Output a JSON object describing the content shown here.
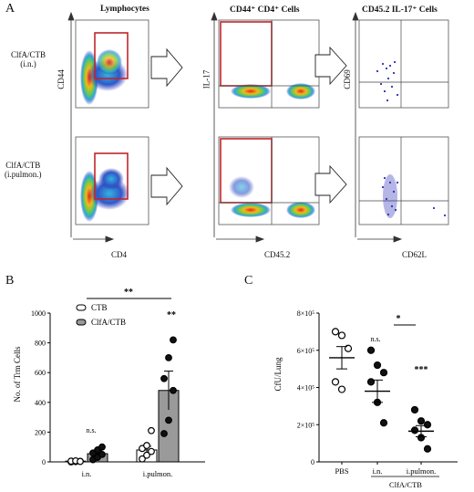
{
  "panel_a": {
    "label": "A",
    "headers": {
      "lymphocytes": "Lymphocytes",
      "cd44cd4": "CD44⁺ CD4⁺ Cells",
      "cd45il17": "CD45.2  IL-17⁺ Cells"
    },
    "row_labels": [
      {
        "name": "ClfA/CTB",
        "route": "(i.n.)"
      },
      {
        "name": "ClfA/CTB",
        "route": "(i.pulmon.)"
      }
    ],
    "axes": {
      "y1": "CD44",
      "x1": "CD4",
      "y2": "IL-17",
      "x2": "CD45.2",
      "y3": "CD69",
      "x3": "CD62L"
    },
    "colors": {
      "gate": "#c0262c",
      "dot_low": "#2b2fb5",
      "dot_high": "#e21b1b"
    }
  },
  "panel_b": {
    "label": "B",
    "legend": [
      "CTB",
      "ClfA/CTB"
    ],
    "sig_top": "**",
    "sig_bar": "**",
    "ns": "n.s."
  },
  "panel_c": {
    "label": "C",
    "sig_pair": "*",
    "sig_bar": "***",
    "ns": "n.s.",
    "group_label": "ClfA/CTB"
  },
  "chart_data": [
    {
      "type": "bar",
      "ylabel": "No. of Trm Cells",
      "ylim": [
        0,
        1000
      ],
      "yticks": [
        0,
        200,
        400,
        600,
        800,
        1000
      ],
      "categories": [
        "i.n.",
        "i.pulmon."
      ],
      "series": [
        {
          "name": "CTB",
          "color": "#ffffff",
          "values": [
            5,
            80
          ],
          "sem": [
            3,
            25
          ],
          "points": [
            [
              0,
              2,
              4,
              5,
              7,
              3
            ],
            [
              20,
              45,
              70,
              90,
              110,
              210
            ]
          ]
        },
        {
          "name": "ClfA/CTB",
          "color": "#9a9a9a",
          "values": [
            55,
            480
          ],
          "sem": [
            20,
            130
          ],
          "points": [
            [
              15,
              30,
              50,
              60,
              80,
              100
            ],
            [
              190,
              280,
              480,
              560,
              700,
              820
            ]
          ]
        }
      ]
    },
    {
      "type": "scatter",
      "ylabel": "CfU/Lung",
      "ylim": [
        0,
        800000
      ],
      "yticks": [
        "0",
        "2×10⁵",
        "4×10⁵",
        "6×10⁵",
        "8×10⁵"
      ],
      "ytick_values": [
        0,
        200000,
        400000,
        600000,
        800000
      ],
      "categories": [
        "PBS",
        "i.n.",
        "i.pulmon."
      ],
      "group_members": [
        "i.n.",
        "i.pulmon."
      ],
      "means": [
        560000,
        380000,
        165000
      ],
      "sem": [
        60000,
        60000,
        30000
      ],
      "points": [
        [
          700000,
          680000,
          610000,
          430000,
          390000
        ],
        [
          600000,
          520000,
          480000,
          430000,
          320000,
          210000
        ],
        [
          280000,
          220000,
          200000,
          170000,
          130000,
          70000
        ]
      ]
    }
  ]
}
